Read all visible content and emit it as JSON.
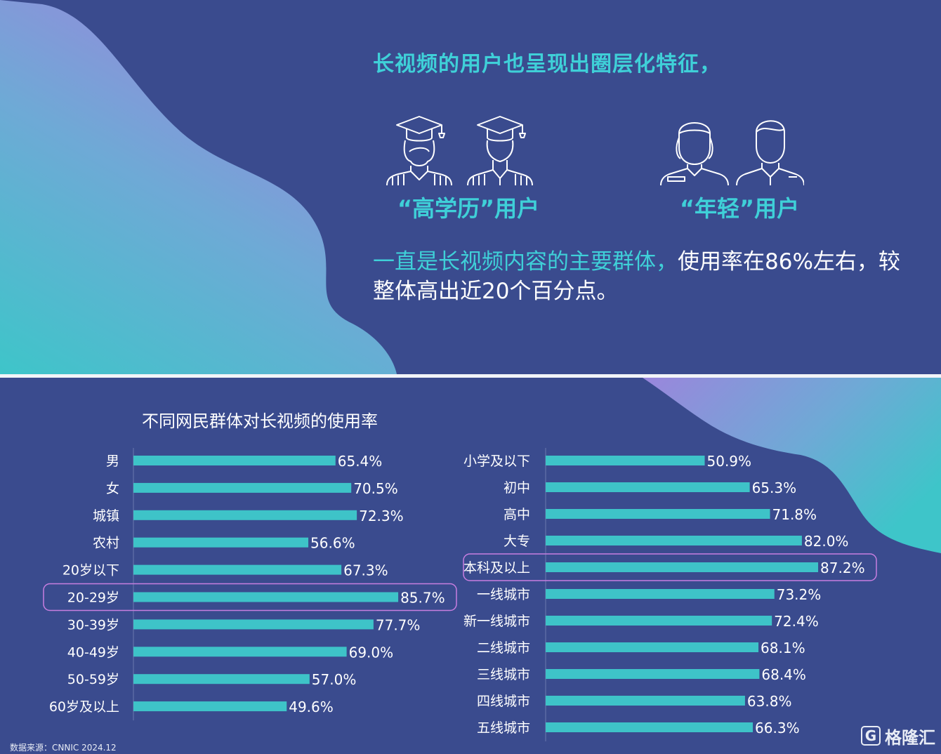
{
  "headline": "长视频的用户也呈现出圈层化特征，",
  "group_labels": {
    "education": "“高学历”用户",
    "young": "“年轻”用户"
  },
  "paragraph": {
    "highlight": "一直是长视频内容的主要群体，",
    "rest": "使用率在86%左右，较整体高出近20个百分点。"
  },
  "icons": [
    "graduate-female-icon",
    "graduate-male-icon",
    "young-female-icon",
    "young-male-icon"
  ],
  "colors": {
    "background": "#3a4b8e",
    "accent": "#3fd0d8",
    "bar": "#3ec3c8",
    "highlight_box": "#c77ee0"
  },
  "source": "数据来源：CNNIC 2024.12",
  "logo": {
    "mark": "G",
    "text": "格隆汇"
  },
  "chart_data": {
    "type": "bar",
    "orientation": "horizontal",
    "title": "不同网民群体对长视频的使用率",
    "value_format": "percent_1dp",
    "panels": [
      {
        "categories": [
          "男",
          "女",
          "城镇",
          "农村",
          "20岁以下",
          "20-29岁",
          "30-39岁",
          "40-49岁",
          "50-59岁",
          "60岁及以上"
        ],
        "values": [
          65.4,
          70.5,
          72.3,
          56.6,
          67.3,
          85.7,
          77.7,
          69.0,
          57.0,
          49.6
        ],
        "highlighted": "20-29岁"
      },
      {
        "categories": [
          "小学及以下",
          "初中",
          "高中",
          "大专",
          "本科及以上",
          "一线城市",
          "新一线城市",
          "二线城市",
          "三线城市",
          "四线城市",
          "五线城市"
        ],
        "values": [
          50.9,
          65.3,
          71.8,
          82.0,
          87.2,
          73.2,
          72.4,
          68.1,
          68.4,
          63.8,
          66.3
        ],
        "highlighted": "本科及以上"
      }
    ]
  }
}
